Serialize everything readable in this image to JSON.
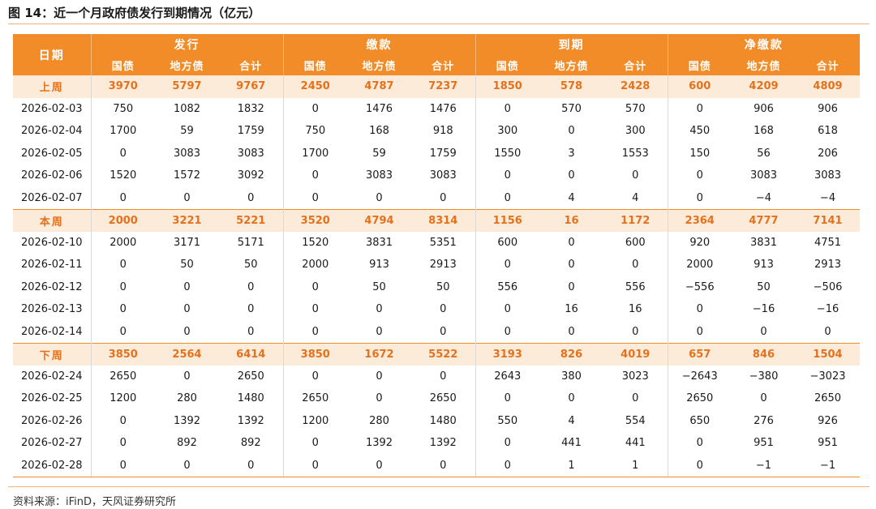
{
  "title": "图 14：近一个月政府债发行到期情况（亿元）",
  "source": "资料来源：iFinD，天风证券研究所",
  "colors": {
    "accent": "#f28c28",
    "summary_bg": "#fdebd9",
    "summary_text": "#e4711c"
  },
  "header": {
    "row_label": "日期",
    "groups": [
      "发行",
      "缴款",
      "到期",
      "净缴款"
    ],
    "sub": [
      "国债",
      "地方债",
      "合计",
      "国债",
      "地方债",
      "合计",
      "国债",
      "地方债",
      "合计",
      "国债",
      "地方债",
      "合计"
    ]
  },
  "rows": [
    {
      "summary": true,
      "date": "上周",
      "v": [
        "3970",
        "5797",
        "9767",
        "2450",
        "4787",
        "7237",
        "1850",
        "578",
        "2428",
        "600",
        "4209",
        "4809"
      ]
    },
    {
      "date": "2026-02-03",
      "v": [
        "750",
        "1082",
        "1832",
        "0",
        "1476",
        "1476",
        "0",
        "570",
        "570",
        "0",
        "906",
        "906"
      ]
    },
    {
      "date": "2026-02-04",
      "v": [
        "1700",
        "59",
        "1759",
        "750",
        "168",
        "918",
        "300",
        "0",
        "300",
        "450",
        "168",
        "618"
      ]
    },
    {
      "date": "2026-02-05",
      "v": [
        "0",
        "3083",
        "3083",
        "1700",
        "59",
        "1759",
        "1550",
        "3",
        "1553",
        "150",
        "56",
        "206"
      ]
    },
    {
      "date": "2026-02-06",
      "v": [
        "1520",
        "1572",
        "3092",
        "0",
        "3083",
        "3083",
        "0",
        "0",
        "0",
        "0",
        "3083",
        "3083"
      ]
    },
    {
      "date": "2026-02-07",
      "v": [
        "0",
        "0",
        "0",
        "0",
        "0",
        "0",
        "0",
        "4",
        "4",
        "0",
        "−4",
        "−4"
      ]
    },
    {
      "summary": true,
      "date": "本周",
      "v": [
        "2000",
        "3221",
        "5221",
        "3520",
        "4794",
        "8314",
        "1156",
        "16",
        "1172",
        "2364",
        "4777",
        "7141"
      ]
    },
    {
      "date": "2026-02-10",
      "v": [
        "2000",
        "3171",
        "5171",
        "1520",
        "3831",
        "5351",
        "600",
        "0",
        "600",
        "920",
        "3831",
        "4751"
      ]
    },
    {
      "date": "2026-02-11",
      "v": [
        "0",
        "50",
        "50",
        "2000",
        "913",
        "2913",
        "0",
        "0",
        "0",
        "2000",
        "913",
        "2913"
      ]
    },
    {
      "date": "2026-02-12",
      "v": [
        "0",
        "0",
        "0",
        "0",
        "50",
        "50",
        "556",
        "0",
        "556",
        "−556",
        "50",
        "−506"
      ]
    },
    {
      "date": "2026-02-13",
      "v": [
        "0",
        "0",
        "0",
        "0",
        "0",
        "0",
        "0",
        "16",
        "16",
        "0",
        "−16",
        "−16"
      ]
    },
    {
      "date": "2026-02-14",
      "v": [
        "0",
        "0",
        "0",
        "0",
        "0",
        "0",
        "0",
        "0",
        "0",
        "0",
        "0",
        "0"
      ]
    },
    {
      "summary": true,
      "date": "下周",
      "v": [
        "3850",
        "2564",
        "6414",
        "3850",
        "1672",
        "5522",
        "3193",
        "826",
        "4019",
        "657",
        "846",
        "1504"
      ]
    },
    {
      "date": "2026-02-24",
      "v": [
        "2650",
        "0",
        "2650",
        "0",
        "0",
        "0",
        "2643",
        "380",
        "3023",
        "−2643",
        "−380",
        "−3023"
      ]
    },
    {
      "date": "2026-02-25",
      "v": [
        "1200",
        "280",
        "1480",
        "2650",
        "0",
        "2650",
        "0",
        "0",
        "0",
        "2650",
        "0",
        "2650"
      ]
    },
    {
      "date": "2026-02-26",
      "v": [
        "0",
        "1392",
        "1392",
        "1200",
        "280",
        "1480",
        "550",
        "4",
        "554",
        "650",
        "276",
        "926"
      ]
    },
    {
      "date": "2026-02-27",
      "v": [
        "0",
        "892",
        "892",
        "0",
        "1392",
        "1392",
        "0",
        "441",
        "441",
        "0",
        "951",
        "951"
      ]
    },
    {
      "date": "2026-02-28",
      "v": [
        "0",
        "0",
        "0",
        "0",
        "0",
        "0",
        "0",
        "1",
        "1",
        "0",
        "−1",
        "−1"
      ]
    }
  ]
}
